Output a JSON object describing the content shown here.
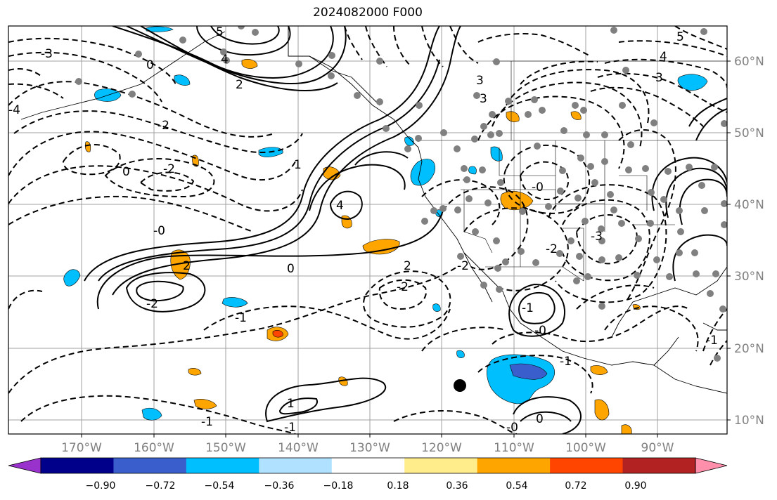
{
  "title": "2024082000 F000",
  "map": {
    "lon_labels": [
      "170°W",
      "160°W",
      "150°W",
      "140°W",
      "130°W",
      "120°W",
      "110°W",
      "100°W",
      "90°W"
    ],
    "lat_labels": [
      "60°N",
      "50°N",
      "40°N",
      "30°N",
      "20°N",
      "10°N"
    ],
    "contour_labels": [
      {
        "text": "5"
      },
      {
        "text": "4"
      },
      {
        "text": "3"
      },
      {
        "text": "2"
      },
      {
        "text": "0"
      },
      {
        "text": "3"
      },
      {
        "text": "1"
      },
      {
        "text": "4"
      },
      {
        "text": "-2"
      },
      {
        "text": "0"
      },
      {
        "text": "-2"
      },
      {
        "text": "-0"
      },
      {
        "text": "2"
      },
      {
        "text": "-2"
      },
      {
        "text": "0"
      },
      {
        "text": "-1"
      },
      {
        "text": "-2"
      },
      {
        "text": "2"
      },
      {
        "text": "-2"
      },
      {
        "text": "-0"
      },
      {
        "text": "-3"
      },
      {
        "text": "-4"
      },
      {
        "text": "-3"
      },
      {
        "text": "5"
      },
      {
        "text": "-2"
      },
      {
        "text": "-1"
      },
      {
        "text": "1"
      },
      {
        "text": "-1"
      },
      {
        "text": "-0"
      },
      {
        "text": "-1"
      },
      {
        "text": "0"
      },
      {
        "text": "-0"
      },
      {
        "text": "-1"
      },
      {
        "text": "4"
      },
      {
        "text": "3"
      },
      {
        "text": "-1"
      }
    ],
    "marker": "tropical-system-dot"
  },
  "colorbar": {
    "tick_labels": [
      "−0.90",
      "−0.72",
      "−0.54",
      "−0.36",
      "−0.18",
      "0.18",
      "0.36",
      "0.54",
      "0.72",
      "0.90"
    ],
    "colors": [
      "#9932cc",
      "#00008b",
      "#3a5fcd",
      "#00bfff",
      "#b0e2ff",
      "#ffffff",
      "#ffec8b",
      "#ffa500",
      "#ff4500",
      "#b22222",
      "#ff8fab"
    ]
  }
}
